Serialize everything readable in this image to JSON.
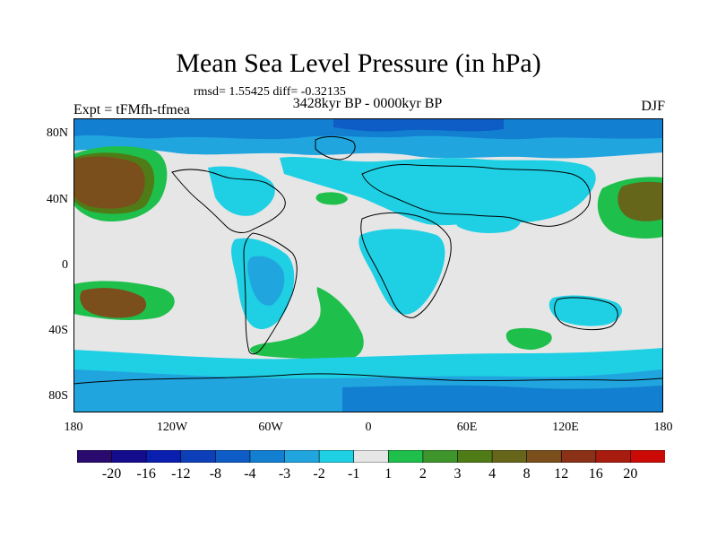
{
  "title": "Mean Sea Level Pressure (in hPa)",
  "stats": "rmsd= 1.55425 diff= -0.32135",
  "subtitle": "3428kyr BP - 0000kyr BP",
  "expt": "Expt = tFMfh-tfmea",
  "season": "DJF",
  "lat_labels": [
    "80N",
    "40N",
    "0",
    "40S",
    "80S"
  ],
  "lon_labels": [
    "180",
    "120W",
    "60W",
    "0",
    "60E",
    "120E",
    "180"
  ],
  "colorbar": {
    "colors": [
      "#2b0a6f",
      "#130c8c",
      "#0a1fb0",
      "#0d3fb8",
      "#0e5cc6",
      "#127fd1",
      "#21a5df",
      "#1fd0e4",
      "#e6e6e6",
      "#1fbf4c",
      "#3e952b",
      "#4f7c16",
      "#66661a",
      "#7a4f1c",
      "#8a3117",
      "#a81c0f",
      "#cc0a05"
    ],
    "labels": [
      "-20",
      "-16",
      "-12",
      "-8",
      "-4",
      "-3",
      "-2",
      "-1",
      "1",
      "2",
      "3",
      "4",
      "8",
      "12",
      "16",
      "20"
    ]
  }
}
